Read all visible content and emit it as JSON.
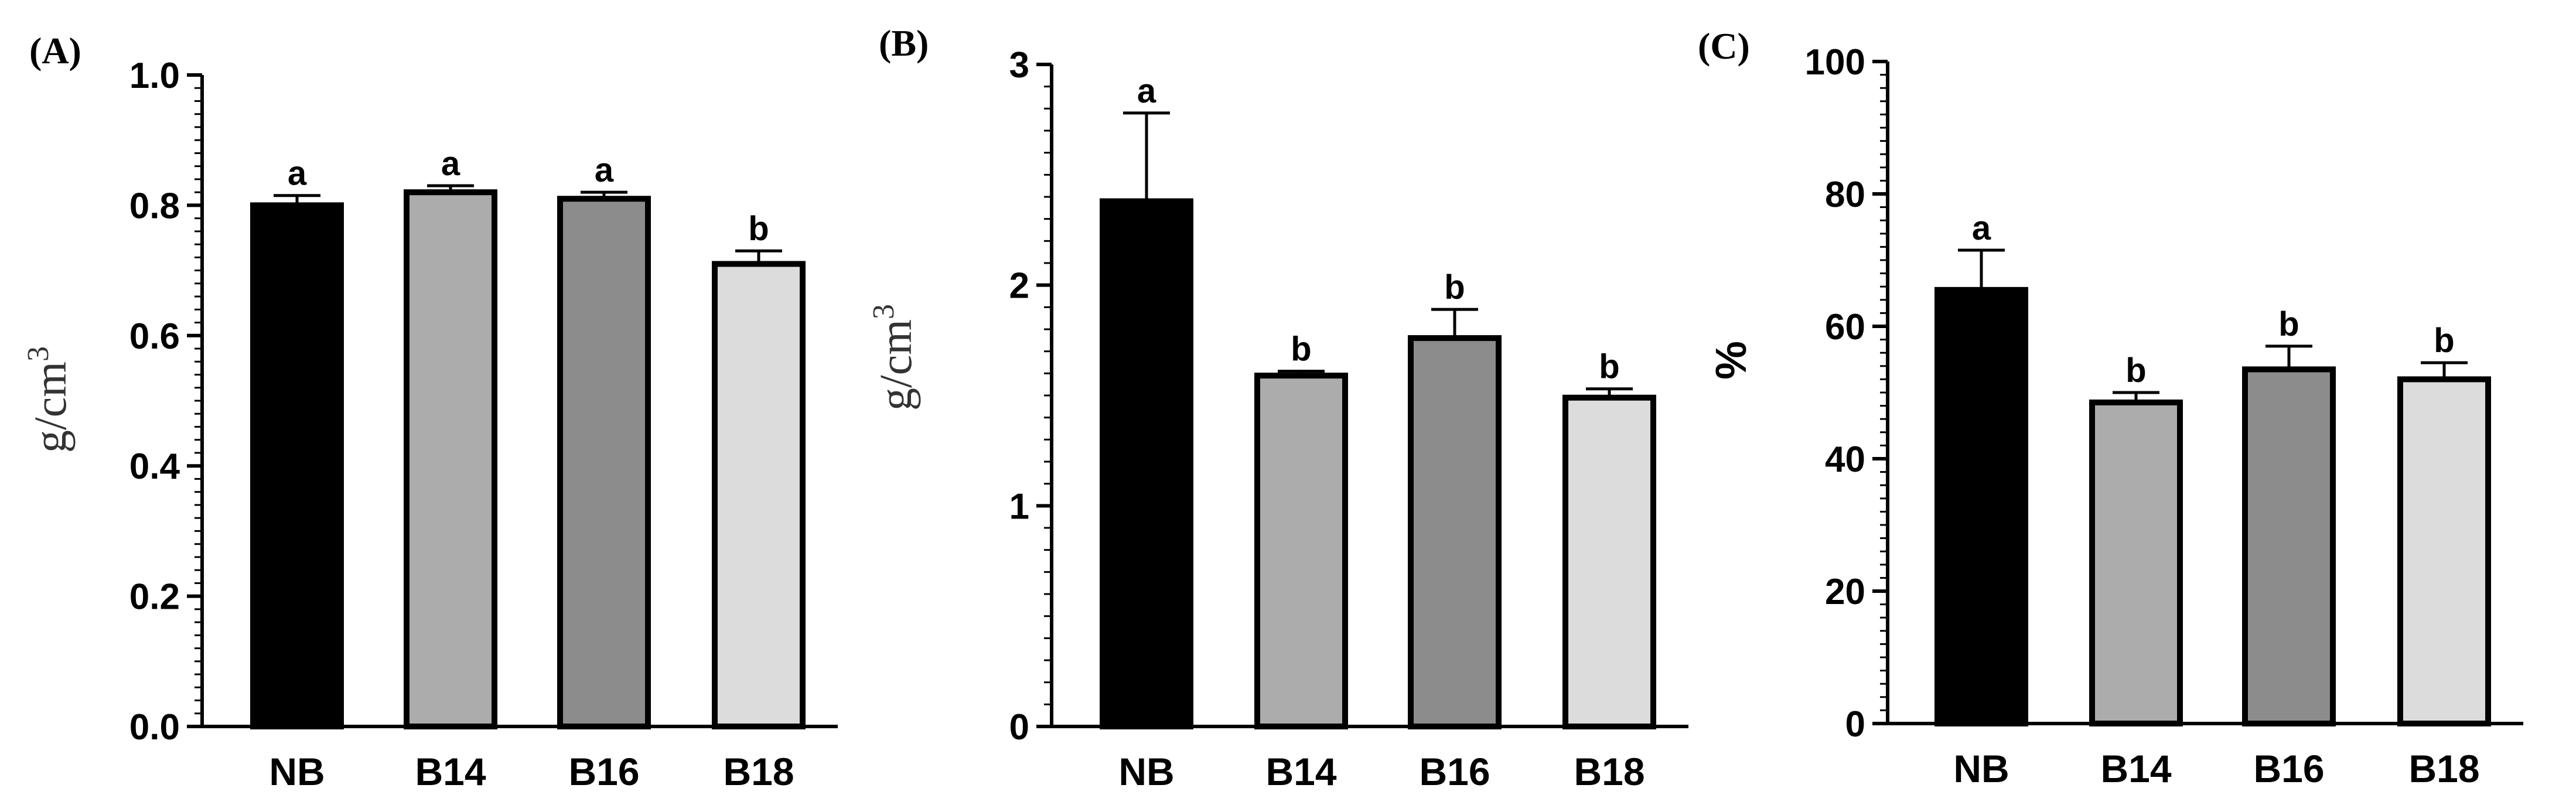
{
  "chart_data": [
    {
      "type": "bar",
      "panel_label": "(A)",
      "categories": [
        "NB",
        "B14",
        "B16",
        "B18"
      ],
      "values": [
        0.8,
        0.82,
        0.81,
        0.71
      ],
      "errors": [
        0.015,
        0.01,
        0.01,
        0.02
      ],
      "significance": [
        "a",
        "a",
        "a",
        "b"
      ],
      "ylabel": "g/cm",
      "ylabel_sup": "3",
      "ylim": [
        0,
        1.0
      ],
      "yticks": [
        "0.0",
        "0.2",
        "0.4",
        "0.6",
        "0.8",
        "1.0"
      ],
      "bar_colors": [
        "#000000",
        "#acacac",
        "#8c8c8c",
        "#dcdcdc"
      ]
    },
    {
      "type": "bar",
      "panel_label": "(B)",
      "categories": [
        "NB",
        "B14",
        "B16",
        "B18"
      ],
      "values": [
        2.38,
        1.59,
        1.76,
        1.49
      ],
      "errors": [
        0.4,
        0.02,
        0.13,
        0.04
      ],
      "significance": [
        "a",
        "b",
        "b",
        "b"
      ],
      "ylabel": "g/cm",
      "ylabel_sup": "3",
      "ylim": [
        0,
        3
      ],
      "yticks": [
        "0",
        "1",
        "2",
        "3"
      ],
      "bar_colors": [
        "#000000",
        "#acacac",
        "#8c8c8c",
        "#dcdcdc"
      ]
    },
    {
      "type": "bar",
      "panel_label": "(C)",
      "categories": [
        "NB",
        "B14",
        "B16",
        "B18"
      ],
      "values": [
        65.5,
        48.5,
        53.5,
        52.0
      ],
      "errors": [
        6.0,
        1.5,
        3.5,
        2.5
      ],
      "significance": [
        "a",
        "b",
        "b",
        "b"
      ],
      "ylabel": "%",
      "ylabel_sup": "",
      "ylim": [
        0,
        100
      ],
      "yticks": [
        "0",
        "20",
        "40",
        "60",
        "80",
        "100"
      ],
      "bar_colors": [
        "#000000",
        "#acacac",
        "#8c8c8c",
        "#dcdcdc"
      ]
    }
  ]
}
